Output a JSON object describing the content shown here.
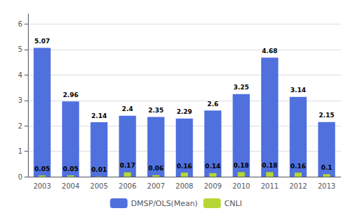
{
  "chart_data": {
    "type": "bar",
    "categories": [
      "2003",
      "2004",
      "2005",
      "2006",
      "2007",
      "2008",
      "2009",
      "2010",
      "2011",
      "2012",
      "2013"
    ],
    "series": [
      {
        "name": "DMSP/OLS(Mean)",
        "values": [
          5.07,
          2.96,
          2.14,
          2.4,
          2.35,
          2.29,
          2.6,
          3.25,
          4.68,
          3.14,
          2.15
        ]
      },
      {
        "name": "CNLI",
        "values": [
          0.05,
          0.05,
          0.01,
          0.17,
          0.06,
          0.16,
          0.14,
          0.18,
          0.18,
          0.16,
          0.1
        ]
      }
    ],
    "ylim": [
      0,
      6.4
    ],
    "yticks": [
      0,
      1,
      2,
      3,
      4,
      5,
      6
    ],
    "grid": true,
    "legend": "bottom",
    "data_labels": true
  }
}
